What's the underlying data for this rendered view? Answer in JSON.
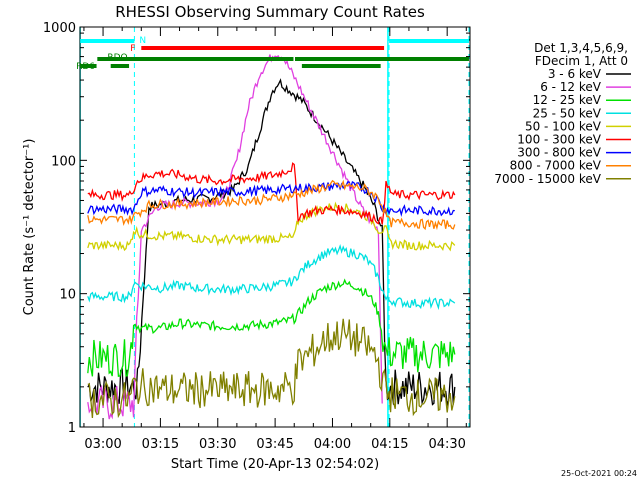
{
  "chart_data": {
    "type": "line",
    "title": "RHESSI Observing Summary Count Rates",
    "xlabel": "Start Time (20-Apr-13 02:54:02)",
    "ylabel": "Count Rate (s⁻¹ detector⁻¹)",
    "yscale": "log",
    "ylim": [
      1,
      1000
    ],
    "xlim_minutes": [
      -6.03,
      95.97
    ],
    "x_ticks": [
      {
        "label": "03:00",
        "minutes": 0
      },
      {
        "label": "03:15",
        "minutes": 15
      },
      {
        "label": "03:30",
        "minutes": 30
      },
      {
        "label": "03:45",
        "minutes": 45
      },
      {
        "label": "04:00",
        "minutes": 60
      },
      {
        "label": "04:15",
        "minutes": 75
      },
      {
        "label": "04:30",
        "minutes": 90
      }
    ],
    "y_ticks": [
      {
        "label": "1",
        "value": 1
      },
      {
        "label": "10",
        "value": 10
      },
      {
        "label": "100",
        "value": 100
      },
      {
        "label": "1000",
        "value": 1000
      }
    ],
    "legend": {
      "header": [
        "Det 1,3,4,5,6,9,",
        "FDecim 1, Att 0"
      ],
      "position": "right"
    },
    "series": [
      {
        "name": "3 - 6 keV",
        "color": "#000000",
        "x": [
          -4,
          0,
          5,
          7,
          9,
          12,
          20,
          28,
          34,
          38,
          41,
          44,
          46,
          48,
          52,
          56,
          60,
          64,
          68,
          71,
          73,
          74,
          78,
          85,
          90,
          92
        ],
        "y": [
          2,
          2,
          2,
          2,
          2,
          45,
          50,
          52,
          60,
          90,
          170,
          320,
          390,
          350,
          280,
          200,
          140,
          95,
          65,
          45,
          30,
          2,
          2,
          2,
          2,
          2
        ]
      },
      {
        "name": "6 - 12 keV",
        "color": "#e040e0",
        "x": [
          -4,
          0,
          6,
          8,
          10,
          14,
          20,
          26,
          30,
          32,
          35,
          38,
          41,
          44,
          45,
          47,
          50,
          54,
          58,
          62,
          65,
          68,
          70,
          72,
          73
        ],
        "y": [
          1.5,
          1.5,
          1.5,
          1.5,
          30,
          45,
          48,
          48,
          50,
          55,
          100,
          250,
          450,
          600,
          640,
          600,
          420,
          250,
          150,
          90,
          60,
          42,
          35,
          30,
          1.5
        ]
      },
      {
        "name": "12 - 25 keV",
        "color": "#00e000",
        "x": [
          -4,
          0,
          6,
          7,
          8,
          10,
          15,
          20,
          25,
          30,
          35,
          40,
          45,
          48,
          50,
          51,
          54,
          58,
          62,
          66,
          69,
          71,
          72,
          74,
          80,
          85,
          90,
          92
        ],
        "y": [
          3.3,
          3.3,
          3.3,
          3.3,
          6,
          5.5,
          5.5,
          6,
          5.8,
          5.7,
          5.7,
          5.8,
          6,
          6.2,
          6.5,
          7,
          9,
          11,
          12,
          11.5,
          10,
          8.5,
          7,
          3.6,
          3.5,
          3.5,
          3.5,
          3.5
        ]
      },
      {
        "name": "25 - 50 keV",
        "color": "#00e0e0",
        "x": [
          -4,
          0,
          6,
          7,
          8,
          10,
          15,
          20,
          25,
          30,
          35,
          40,
          45,
          48,
          50,
          51,
          54,
          58,
          62,
          66,
          69,
          71,
          72,
          74,
          80,
          85,
          90,
          92
        ],
        "y": [
          9.5,
          9.5,
          9.5,
          9.5,
          12,
          11.5,
          11,
          11.5,
          11,
          10.8,
          10.8,
          11,
          11.5,
          12,
          12.5,
          14,
          17,
          20,
          21,
          20,
          18,
          15,
          13,
          9,
          8.5,
          8.5,
          8.5,
          8.5
        ]
      },
      {
        "name": "50 - 100 keV",
        "color": "#d0d000",
        "x": [
          -4,
          0,
          6,
          7,
          8,
          10,
          15,
          20,
          25,
          30,
          35,
          40,
          45,
          48,
          50,
          51,
          54,
          58,
          62,
          66,
          69,
          71,
          72,
          74,
          75,
          80,
          85,
          90,
          92
        ],
        "y": [
          23,
          23,
          23,
          23,
          30,
          28,
          27,
          27,
          26,
          25.5,
          25.5,
          25.5,
          26,
          26,
          26.5,
          35,
          40,
          44,
          45,
          42,
          38,
          34,
          30,
          30,
          24,
          23,
          23,
          23,
          23
        ]
      },
      {
        "name": "100 - 300 keV",
        "color": "#ff0000",
        "x": [
          -4,
          0,
          1,
          3,
          5,
          7,
          9,
          12,
          15,
          20,
          25,
          30,
          35,
          40,
          45,
          48,
          50,
          51,
          53,
          56,
          60,
          64,
          68,
          70,
          72,
          73,
          74,
          76,
          80,
          85,
          90,
          92
        ],
        "y": [
          55,
          55,
          55,
          55,
          55,
          55,
          70,
          78,
          80,
          78,
          72,
          70,
          72,
          74,
          78,
          84,
          90,
          38,
          40,
          42,
          43,
          42,
          40,
          38,
          36,
          34,
          65,
          55,
          55,
          55,
          55,
          55
        ]
      },
      {
        "name": "300 - 800 keV",
        "color": "#0000ff",
        "x": [
          -4,
          0,
          6,
          8,
          10,
          15,
          20,
          25,
          30,
          35,
          40,
          45,
          50,
          55,
          60,
          64,
          68,
          70,
          72,
          73,
          74,
          76,
          80,
          85,
          90,
          92
        ],
        "y": [
          43,
          43,
          43,
          43,
          58,
          60,
          58,
          57,
          58,
          58,
          59,
          60,
          62,
          62,
          64,
          65,
          62,
          58,
          50,
          44,
          43,
          42,
          42,
          42,
          42,
          42
        ]
      },
      {
        "name": "800 - 7000 keV",
        "color": "#ff8000",
        "x": [
          -4,
          0,
          5,
          7,
          9,
          12,
          15,
          20,
          25,
          30,
          35,
          40,
          45,
          50,
          55,
          60,
          64,
          68,
          70,
          72,
          73,
          75,
          80,
          85,
          90,
          92
        ],
        "y": [
          36,
          36,
          36,
          36,
          40,
          46,
          47,
          47,
          48,
          49,
          50,
          50,
          52,
          55,
          60,
          65,
          64,
          62,
          58,
          52,
          46,
          34,
          34,
          33,
          33,
          33
        ]
      },
      {
        "name": "7000 - 15000 keV",
        "color": "#808000",
        "x": [
          -4,
          0,
          6,
          7,
          8,
          12,
          16,
          20,
          25,
          30,
          35,
          40,
          45,
          48,
          50,
          51,
          54,
          58,
          62,
          66,
          69,
          71,
          72,
          74,
          80,
          85,
          90,
          92
        ],
        "y": [
          1.6,
          1.6,
          1.6,
          1.6,
          2,
          2,
          1.9,
          1.9,
          1.9,
          1.9,
          1.9,
          1.9,
          1.9,
          2,
          2,
          3,
          3.5,
          4.5,
          5,
          4.5,
          4,
          3.5,
          3,
          1.8,
          1.7,
          1.7,
          1.7,
          1.7
        ]
      }
    ],
    "flag_bars": [
      {
        "label": "N",
        "color": "#00ffff",
        "segments": [
          [
            -6,
            8.2
          ],
          [
            74.8,
            95.7
          ]
        ],
        "level": 1
      },
      {
        "label": "F",
        "color": "#ff0000",
        "segments": [
          [
            10,
            73.5
          ]
        ],
        "level": 2
      },
      {
        "label": "RDO",
        "color": "#008000",
        "segments": [
          [
            -1.5,
            49.8
          ],
          [
            50.2,
            95.7
          ]
        ],
        "level": 3
      },
      {
        "label": "RD6",
        "color": "#008000",
        "segments": [
          [
            2,
            6.8
          ],
          [
            52,
            72.6
          ],
          [
            -6,
            -1.7
          ]
        ],
        "level": 4
      }
    ],
    "dashed_markers": {
      "color": "#00ffff",
      "minutes": [
        8.2,
        74.8,
        95.7
      ]
    },
    "solid_markers": {
      "color": "#00ffff",
      "minutes": [
        -6,
        74.5
      ]
    },
    "timestamp": "25-Oct-2021 00:24"
  }
}
